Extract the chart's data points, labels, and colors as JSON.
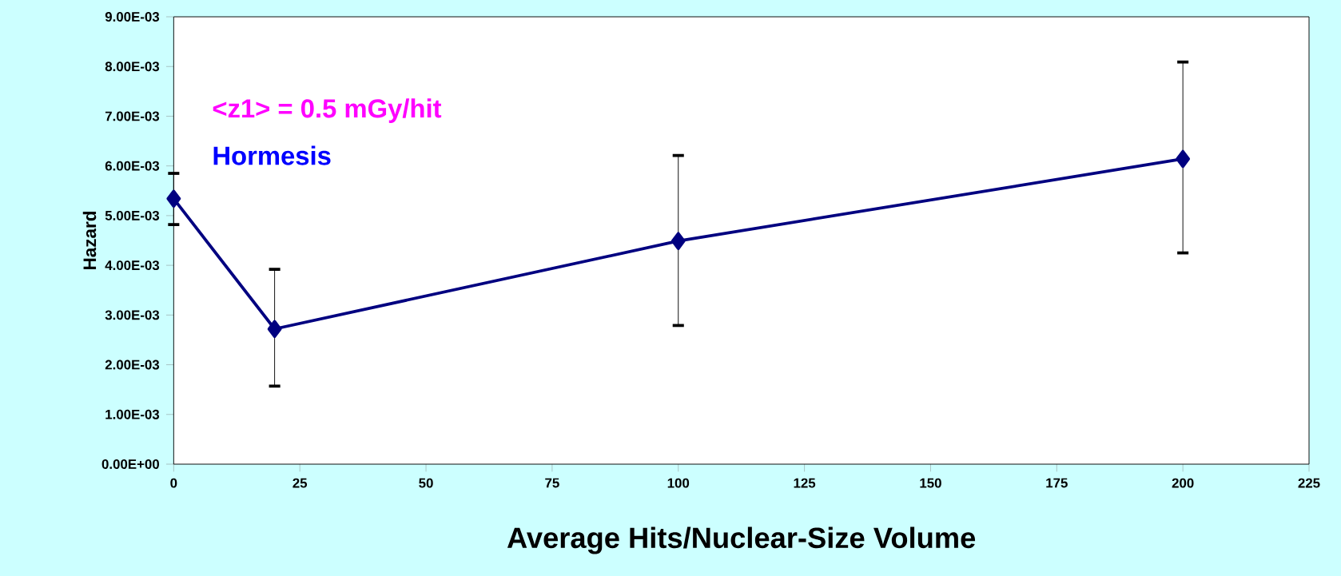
{
  "chart_data": {
    "type": "line",
    "xlabel": "Average Hits/Nuclear-Size Volume",
    "ylabel": "Hazard",
    "annotations": [
      "<z1> = 0.5 mGy/hit",
      "Hormesis"
    ],
    "x": [
      0,
      20,
      100,
      200
    ],
    "series": [
      {
        "color": "#000080",
        "values": [
          0.00534,
          0.00272,
          0.00449,
          0.00614
        ],
        "errors": [
          [
            0.00482,
            0.00585
          ],
          [
            0.00157,
            0.00392
          ],
          [
            0.00279,
            0.00621
          ],
          [
            0.00425,
            0.00809
          ]
        ]
      }
    ],
    "xlim": [
      0,
      225
    ],
    "xticks": [
      0,
      25,
      50,
      75,
      100,
      125,
      150,
      175,
      200,
      225
    ],
    "ylim": [
      0,
      0.009
    ],
    "yticks": [
      {
        "value": 0,
        "label": "0.00E+00"
      },
      {
        "value": 0.001,
        "label": "1.00E-03"
      },
      {
        "value": 0.002,
        "label": "2.00E-03"
      },
      {
        "value": 0.003,
        "label": "3.00E-03"
      },
      {
        "value": 0.004,
        "label": "4.00E-03"
      },
      {
        "value": 0.005,
        "label": "5.00E-03"
      },
      {
        "value": 0.006,
        "label": "6.00E-03"
      },
      {
        "value": 0.007,
        "label": "7.00E-03"
      },
      {
        "value": 0.008,
        "label": "8.00E-03"
      },
      {
        "value": 0.009,
        "label": "9.00E-03"
      }
    ],
    "marker": "diamond",
    "line_style": "solid",
    "grid": false,
    "legend": false
  }
}
